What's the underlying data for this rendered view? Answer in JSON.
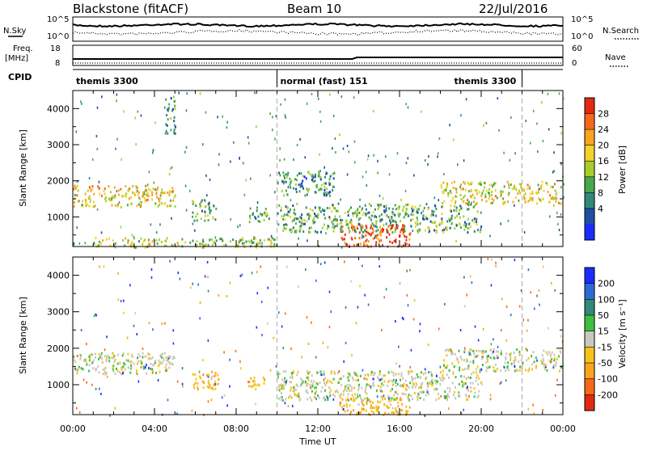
{
  "header": {
    "title": "Blackstone (fitACF)",
    "beam": "Beam 10",
    "date": "22/Jul/2016"
  },
  "info_panels": {
    "nsky_label": "N.Sky",
    "nsearch_label": "N.Search",
    "nsky_ticks": [
      "10^5",
      "10^0"
    ],
    "freq_label_line1": "Freq.",
    "freq_label_line2": "[MHz]",
    "freq_ticks": [
      "18",
      "8"
    ],
    "nave_label": "Nave",
    "nave_ticks": [
      "60",
      "0"
    ],
    "cpid_label": "CPID",
    "cpid_segments": [
      {
        "label": "themis 3300",
        "start_h": 0,
        "end_h": 10
      },
      {
        "label": "normal (fast) 151",
        "start_h": 10,
        "end_h": 22
      },
      {
        "label": "themis 3300",
        "start_h": 22,
        "end_h": 24
      }
    ]
  },
  "chart_data": [
    {
      "type": "heatmap",
      "quantity": "power",
      "xlabel": "",
      "ylabel": "Slant Range [km]",
      "xlim_h": [
        0,
        24
      ],
      "ylim_km": [
        180,
        4500
      ],
      "y_ticks": [
        1000,
        2000,
        3000,
        4000
      ],
      "x_ticks": [
        "00:00",
        "04:00",
        "08:00",
        "12:00",
        "16:00",
        "20:00",
        "00:00"
      ],
      "colorbar": {
        "label": "Power [dB]",
        "ticks": [
          "4",
          "8",
          "12",
          "16",
          "20",
          "24",
          "28"
        ],
        "colors": [
          "#1c2bff",
          "#1f4fa3",
          "#2f8a7a",
          "#49a84a",
          "#a6cf2c",
          "#f3d12a",
          "#f7a41f",
          "#f56a1a",
          "#e22a12"
        ]
      },
      "echo_regions": [
        {
          "t0": 0.0,
          "t1": 5.0,
          "r0": 1300,
          "r1": 1900,
          "level": 20
        },
        {
          "t0": 4.5,
          "t1": 5.0,
          "r0": 3300,
          "r1": 4400,
          "level": 10
        },
        {
          "t0": 5.8,
          "t1": 7.0,
          "r0": 900,
          "r1": 1500,
          "level": 12
        },
        {
          "t0": 8.5,
          "t1": 9.6,
          "r0": 900,
          "r1": 1300,
          "level": 12
        },
        {
          "t0": 1.0,
          "t1": 10.0,
          "r0": 180,
          "r1": 450,
          "level": 16
        },
        {
          "t0": 10.0,
          "t1": 12.8,
          "r0": 1600,
          "r1": 2300,
          "level": 10
        },
        {
          "t0": 10.0,
          "t1": 20.0,
          "r0": 600,
          "r1": 1400,
          "level": 12
        },
        {
          "t0": 13.0,
          "t1": 16.5,
          "r0": 200,
          "r1": 800,
          "level": 28
        },
        {
          "t0": 18.0,
          "t1": 24.0,
          "r0": 1400,
          "r1": 2000,
          "level": 18
        }
      ]
    },
    {
      "type": "heatmap",
      "quantity": "velocity",
      "xlabel": "Time UT",
      "ylabel": "Slant Range [km]",
      "xlim_h": [
        0,
        24
      ],
      "ylim_km": [
        180,
        4500
      ],
      "y_ticks": [
        1000,
        2000,
        3000,
        4000
      ],
      "x_ticks": [
        "00:00",
        "04:00",
        "08:00",
        "12:00",
        "16:00",
        "20:00",
        "00:00"
      ],
      "colorbar": {
        "label": "Velocity [m s⁻¹]",
        "ticks": [
          "200",
          "100",
          "50",
          "15",
          "-15",
          "-50",
          "-100",
          "-200"
        ],
        "colors": [
          "#1c2bff",
          "#2c6bd6",
          "#2f8a7a",
          "#3fbf3f",
          "#c8c8c0",
          "#f7c21a",
          "#f7a41f",
          "#f56a1a",
          "#e22a12"
        ]
      },
      "echo_regions": [
        {
          "t0": 0.0,
          "t1": 5.0,
          "r0": 1300,
          "r1": 1900,
          "level": 0
        },
        {
          "t0": 5.8,
          "t1": 7.2,
          "r0": 900,
          "r1": 1400,
          "level": -40
        },
        {
          "t0": 8.5,
          "t1": 9.6,
          "r0": 950,
          "r1": 1250,
          "level": -40
        },
        {
          "t0": 10.0,
          "t1": 20.0,
          "r0": 600,
          "r1": 1400,
          "level": 0
        },
        {
          "t0": 13.0,
          "t1": 16.5,
          "r0": 200,
          "r1": 700,
          "level": -40
        },
        {
          "t0": 18.0,
          "t1": 24.0,
          "r0": 1400,
          "r1": 2000,
          "level": 0
        }
      ]
    }
  ]
}
